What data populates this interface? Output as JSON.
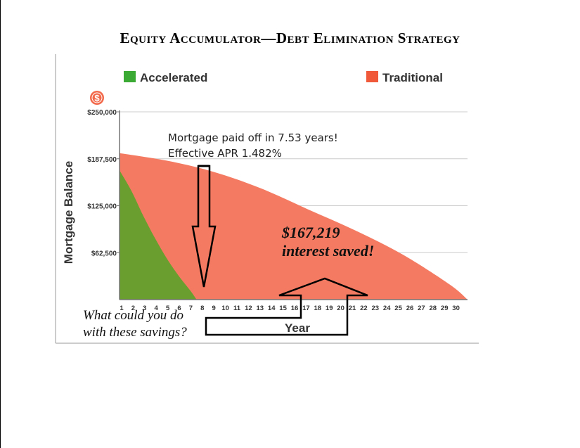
{
  "page": {
    "title": "Equity Accumulator—Debt Elimination Strategy"
  },
  "colors": {
    "accelerated": "#6a9e2e",
    "accelerated_legend": "#3aaa35",
    "traditional": "#f47b62",
    "traditional_legend": "#f05a3a",
    "grid": "#cccccc",
    "axis": "#777777"
  },
  "icons": {
    "dollar": "dollar-coin-icon"
  },
  "chart_data": {
    "type": "area",
    "xlabel": "Year",
    "ylabel": "Mortgage Balance",
    "ylim": [
      0,
      250000
    ],
    "y_ticks": [
      {
        "value": 62500,
        "label": "$62,500"
      },
      {
        "value": 125000,
        "label": "$125,000"
      },
      {
        "value": 187500,
        "label": "$187,500"
      },
      {
        "value": 250000,
        "label": "$250,000"
      }
    ],
    "x_ticks": [
      "1",
      "2",
      "3",
      "4",
      "5",
      "6",
      "7",
      "8",
      "9",
      "10",
      "11",
      "12",
      "13",
      "14",
      "15",
      "16",
      "17",
      "18",
      "19",
      "20",
      "21",
      "22",
      "23",
      "24",
      "25",
      "26",
      "27",
      "28",
      "29",
      "30"
    ],
    "grid": true,
    "legend": {
      "placement": "top",
      "entries": [
        {
          "name": "Accelerated",
          "color": "#3aaa35"
        },
        {
          "name": "Traditional",
          "color": "#f05a3a"
        }
      ]
    },
    "series": [
      {
        "name": "Traditional",
        "color": "#f47b62",
        "x": [
          1,
          5,
          9,
          13,
          17,
          21,
          25,
          29,
          30.5
        ],
        "values": [
          195000,
          185000,
          170000,
          148000,
          120000,
          92000,
          60000,
          20000,
          0
        ]
      },
      {
        "name": "Accelerated",
        "color": "#6a9e2e",
        "x": [
          1,
          2,
          3,
          4,
          5,
          6,
          7,
          7.53
        ],
        "values": [
          172000,
          145000,
          112000,
          82000,
          55000,
          32000,
          12000,
          0
        ]
      }
    ],
    "annotations": {
      "payoff_line1": "Mortgage paid off in 7.53 years!",
      "payoff_line2": "Effective APR 1.482%",
      "savings_amount": "$167,219",
      "savings_label": "interest saved!",
      "question_line1": "What could you do",
      "question_line2": "with these savings?"
    }
  }
}
